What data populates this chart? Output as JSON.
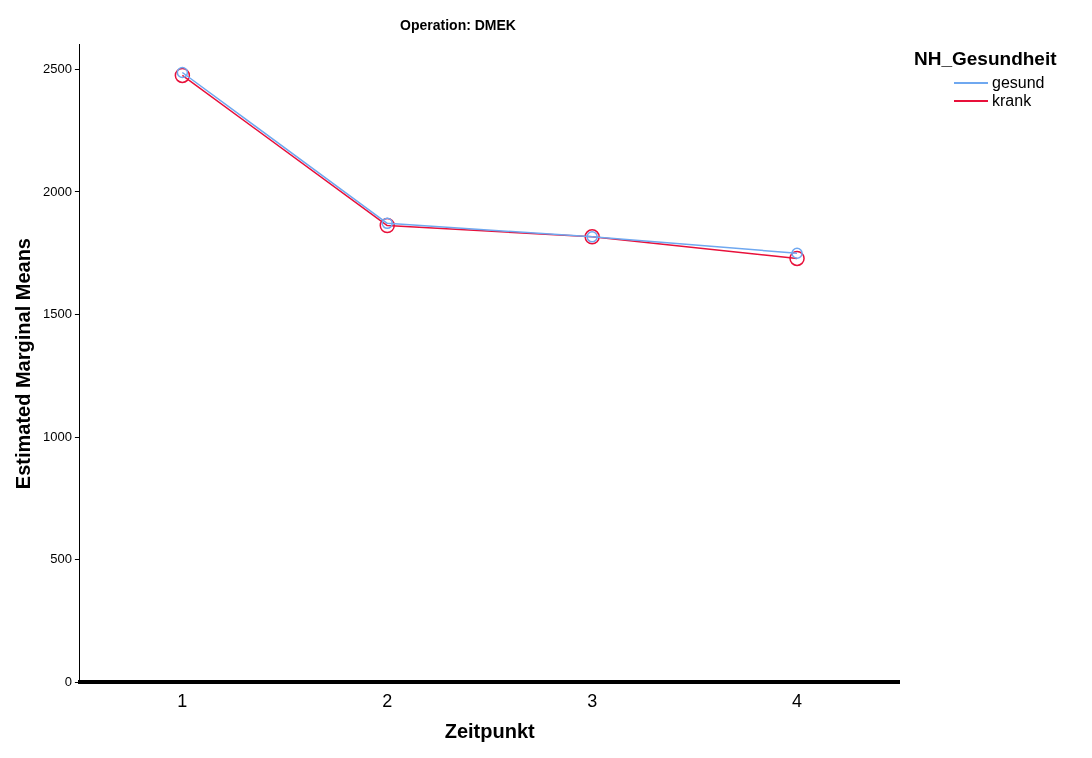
{
  "chart_data": {
    "type": "line",
    "title": "Operation: DMEK",
    "xlabel": "Zeitpunkt",
    "ylabel": "Estimated Marginal Means",
    "legend_title": "NH_Gesundheit",
    "categories": [
      "1",
      "2",
      "3",
      "4"
    ],
    "series": [
      {
        "name": "gesund",
        "color": "#6fa8f0",
        "values": [
          2487,
          1872,
          1817,
          1750
        ]
      },
      {
        "name": "krank",
        "color": "#e8103a",
        "values": [
          2475,
          1863,
          1817,
          1729
        ]
      }
    ],
    "ylim": [
      0,
      2600
    ],
    "yticks": [
      0,
      500,
      1000,
      1500,
      2000,
      2500
    ],
    "grid": false,
    "legend": "top right",
    "marker": "circle",
    "line_style": "solid"
  }
}
